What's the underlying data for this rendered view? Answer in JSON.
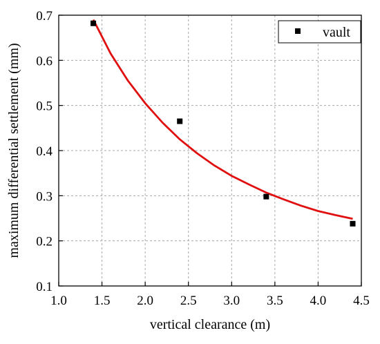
{
  "chart_data": {
    "type": "scatter",
    "xlabel": "vertical clearance (m)",
    "ylabel": "maximum differential settlement (mm)",
    "xlim": [
      1.0,
      4.5
    ],
    "ylim": [
      0.1,
      0.7
    ],
    "x_ticks": [
      "1.0",
      "1.5",
      "2.0",
      "2.5",
      "3.0",
      "3.5",
      "4.0",
      "4.5"
    ],
    "y_ticks": [
      "0.1",
      "0.2",
      "0.3",
      "0.4",
      "0.5",
      "0.6",
      "0.7"
    ],
    "grid": true,
    "legend_position": "top-right",
    "series": [
      {
        "name": "vault",
        "marker": "square",
        "color": "#000000",
        "x": [
          1.4,
          2.4,
          3.4,
          4.4
        ],
        "y": [
          0.682,
          0.465,
          0.298,
          0.238
        ]
      }
    ],
    "fit": {
      "color": "#e01010",
      "x": [
        1.4,
        1.6,
        1.8,
        2.0,
        2.2,
        2.4,
        2.6,
        2.8,
        3.0,
        3.2,
        3.4,
        3.6,
        3.8,
        4.0,
        4.2,
        4.4
      ],
      "y": [
        0.69,
        0.615,
        0.555,
        0.505,
        0.462,
        0.425,
        0.394,
        0.367,
        0.344,
        0.325,
        0.307,
        0.292,
        0.278,
        0.266,
        0.257,
        0.249
      ]
    }
  }
}
